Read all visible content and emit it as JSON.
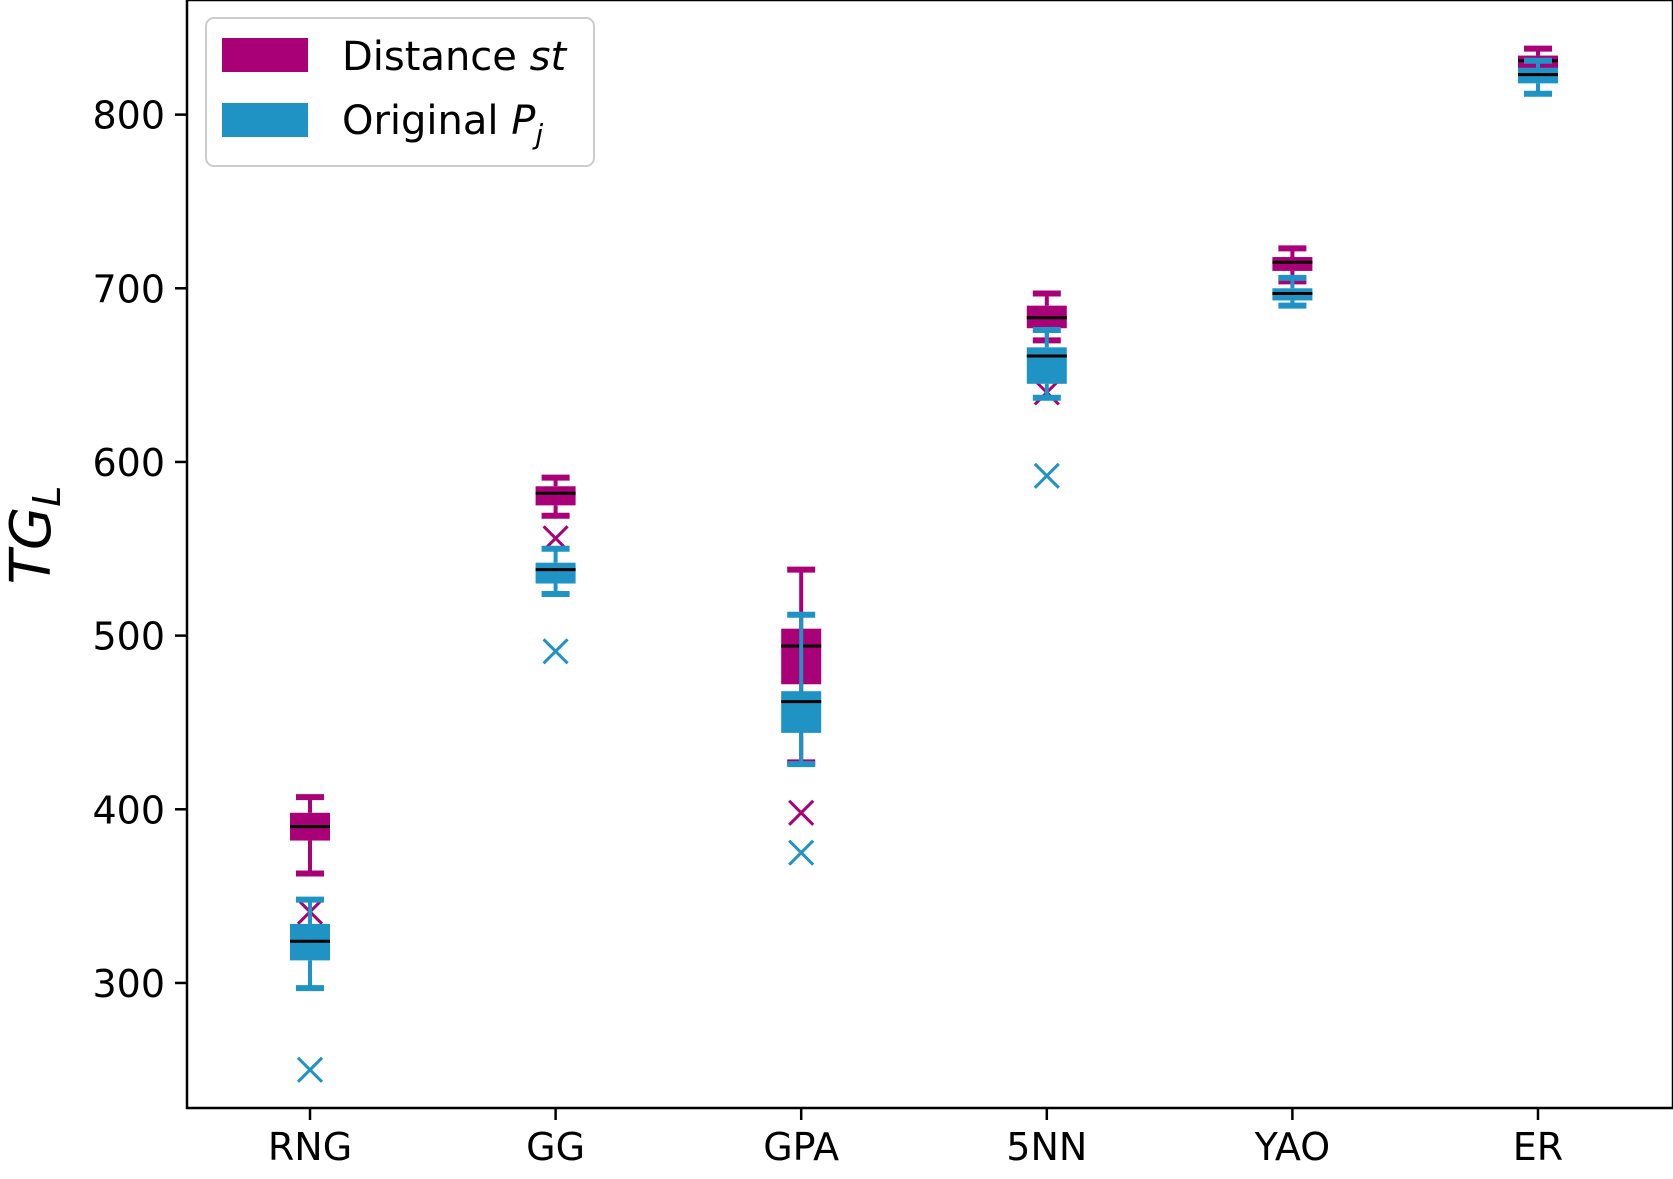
{
  "chart_data": {
    "type": "boxplot",
    "categories": [
      "RNG",
      "GG",
      "GPA",
      "5NN",
      "YAO",
      "ER"
    ],
    "ylabel": {
      "main": "TG",
      "sub": "L"
    },
    "yticks": [
      300,
      400,
      500,
      600,
      700,
      800
    ],
    "ylim": [
      228,
      866
    ],
    "legend": {
      "position": "top-left",
      "entries": [
        {
          "text": "Distance ",
          "italic": "st"
        },
        {
          "text": "Original ",
          "italic": "P",
          "sub": "j"
        }
      ]
    },
    "series": [
      {
        "name": "Distance st",
        "color": "#AA0077",
        "boxes": [
          {
            "category": "RNG",
            "whislo": 363,
            "q1": 382,
            "median": 390,
            "q3": 398,
            "whishi": 407,
            "fliers": [
              341
            ]
          },
          {
            "category": "GG",
            "whislo": 569,
            "q1": 575,
            "median": 582,
            "q3": 586,
            "whishi": 591,
            "fliers": [
              556
            ]
          },
          {
            "category": "GPA",
            "whislo": 427,
            "q1": 472,
            "median": 494,
            "q3": 504,
            "whishi": 538,
            "fliers": [
              398
            ]
          },
          {
            "category": "5NN",
            "whislo": 670,
            "q1": 677,
            "median": 683,
            "q3": 690,
            "whishi": 697,
            "fliers": [
              640
            ]
          },
          {
            "category": "YAO",
            "whislo": 704,
            "q1": 710,
            "median": 715,
            "q3": 718,
            "whishi": 723,
            "fliers": []
          },
          {
            "category": "ER",
            "whislo": 821,
            "q1": 826,
            "median": 831,
            "q3": 834,
            "whishi": 838,
            "fliers": []
          }
        ]
      },
      {
        "name": "Original Pj",
        "color": "#1F93C3",
        "boxes": [
          {
            "category": "RNG",
            "whislo": 297,
            "q1": 313,
            "median": 324,
            "q3": 334,
            "whishi": 348,
            "fliers": [
              250
            ]
          },
          {
            "category": "GG",
            "whislo": 524,
            "q1": 530,
            "median": 538,
            "q3": 542,
            "whishi": 550,
            "fliers": [
              491
            ]
          },
          {
            "category": "GPA",
            "whislo": 426,
            "q1": 444,
            "median": 462,
            "q3": 468,
            "whishi": 512,
            "fliers": [
              375
            ]
          },
          {
            "category": "5NN",
            "whislo": 637,
            "q1": 645,
            "median": 661,
            "q3": 666,
            "whishi": 676,
            "fliers": [
              592
            ]
          },
          {
            "category": "YAO",
            "whislo": 690,
            "q1": 693,
            "median": 697,
            "q3": 700,
            "whishi": 706,
            "fliers": []
          },
          {
            "category": "ER",
            "whislo": 812,
            "q1": 818,
            "median": 823,
            "q3": 827,
            "whishi": 831,
            "fliers": []
          }
        ]
      }
    ]
  }
}
